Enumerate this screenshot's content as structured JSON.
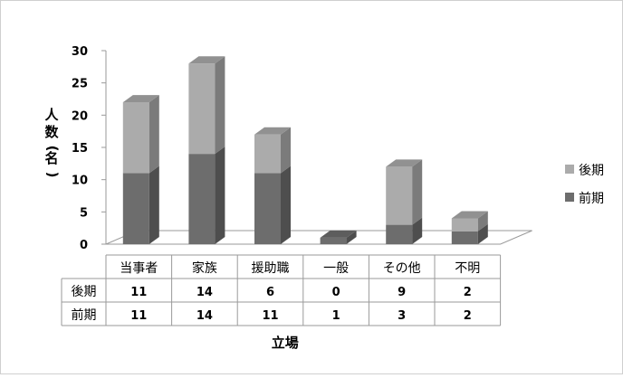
{
  "chart_data": {
    "type": "bar",
    "stacked": true,
    "three_d": true,
    "categories": [
      "当事者",
      "家族",
      "援助職",
      "一般",
      "その他",
      "不明"
    ],
    "series": [
      {
        "name": "前期",
        "values": [
          11,
          14,
          11,
          1,
          3,
          2
        ],
        "color": "#6d6d6d"
      },
      {
        "name": "後期",
        "values": [
          11,
          14,
          6,
          0,
          9,
          2
        ],
        "color": "#ababab"
      }
    ],
    "ylabel": "人数(名)",
    "xlabel": "立場",
    "ylim": [
      0,
      30
    ],
    "yticks": [
      0,
      5,
      10,
      15,
      20,
      25,
      30
    ],
    "legend": "right",
    "data_table": true,
    "grid": false
  }
}
